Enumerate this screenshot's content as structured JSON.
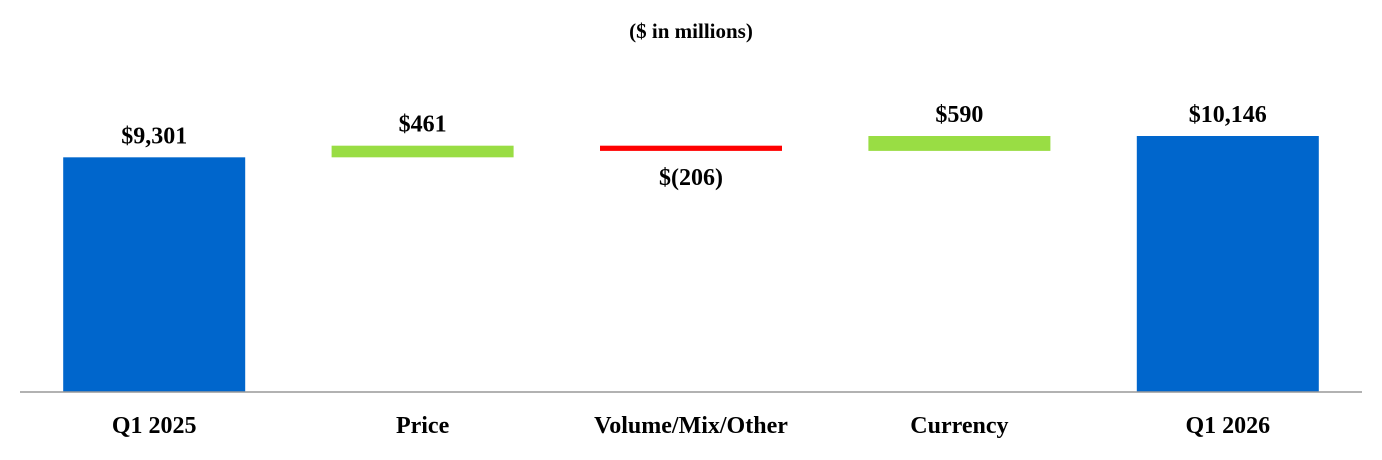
{
  "chart_data": {
    "type": "bar",
    "subtitle": "($ in millions)",
    "categories": [
      "Q1 2025",
      "Price",
      "Volume/Mix/Other",
      "Currency",
      "Q1 2026"
    ],
    "values": [
      9301,
      461,
      -206,
      590,
      10146
    ],
    "bar_kinds": [
      "total",
      "delta",
      "delta",
      "delta",
      "total"
    ],
    "data_labels": [
      "$9,301",
      "$461",
      "$(206)",
      "$590",
      "$10,146"
    ],
    "colors": {
      "total": "#0066CC",
      "increase": "#99DD44",
      "decrease": "#FF0000",
      "axis": "#999999",
      "text": "#000000"
    },
    "grid": false,
    "legend": "none"
  }
}
